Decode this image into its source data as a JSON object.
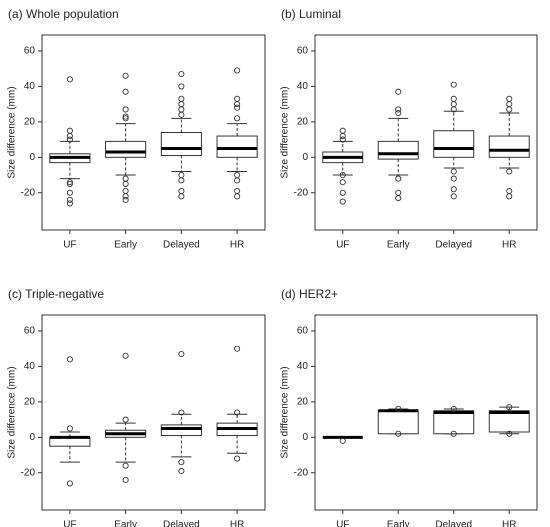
{
  "chart_data": [
    {
      "type": "box",
      "title": "(a) Whole population",
      "y_label": "Size difference (mm)",
      "categories": [
        "UF",
        "Early",
        "Delayed",
        "HR"
      ],
      "boxes": [
        {
          "min": -12,
          "q1": -3,
          "median": 0,
          "q3": 2,
          "max": 9,
          "outliers": [
            44,
            15,
            12,
            10,
            -14,
            -15,
            -20,
            -24,
            -26
          ]
        },
        {
          "min": -10,
          "q1": 0,
          "median": 3,
          "q3": 9,
          "max": 19,
          "outliers": [
            46,
            37,
            27,
            23,
            22,
            -12,
            -15,
            -19,
            -22,
            -24
          ]
        },
        {
          "min": -8,
          "q1": 1,
          "median": 5,
          "q3": 14,
          "max": 22,
          "outliers": [
            47,
            40,
            33,
            30,
            27,
            24,
            -10,
            -13,
            -19,
            -22
          ]
        },
        {
          "min": -8,
          "q1": 0,
          "median": 5,
          "q3": 12,
          "max": 19,
          "outliers": [
            49,
            33,
            30,
            28,
            22,
            -10,
            -13,
            -19,
            -22
          ]
        }
      ],
      "ylim": [
        -41,
        69
      ],
      "yticks": [
        -20,
        0,
        20,
        40,
        60
      ]
    },
    {
      "type": "box",
      "title": "(b) Luminal",
      "y_label": "Size difference (mm)",
      "categories": [
        "UF",
        "Early",
        "Delayed",
        "HR"
      ],
      "boxes": [
        {
          "min": -10,
          "q1": -3,
          "median": 0,
          "q3": 3,
          "max": 9,
          "outliers": [
            15,
            12,
            10,
            -10,
            -14,
            -20,
            -25
          ]
        },
        {
          "min": -10,
          "q1": -1,
          "median": 2,
          "q3": 9,
          "max": 22,
          "outliers": [
            37,
            27,
            25,
            -12,
            -20,
            -23
          ]
        },
        {
          "min": -6,
          "q1": 0,
          "median": 5,
          "q3": 15,
          "max": 26,
          "outliers": [
            41,
            33,
            30,
            27,
            -8,
            -12,
            -18,
            -22
          ]
        },
        {
          "min": -6,
          "q1": 0,
          "median": 4,
          "q3": 12,
          "max": 25,
          "outliers": [
            33,
            30,
            27,
            -8,
            -19,
            -22
          ]
        }
      ],
      "ylim": [
        -41,
        69
      ],
      "yticks": [
        -20,
        0,
        20,
        40,
        60
      ]
    },
    {
      "type": "box",
      "title": "(c) Triple-negative",
      "y_label": "Size difference (mm)",
      "categories": [
        "UF",
        "Early",
        "Delayed",
        "HR"
      ],
      "boxes": [
        {
          "min": -14,
          "q1": -5,
          "median": 0,
          "q3": 0,
          "max": 3,
          "outliers": [
            44,
            5,
            -26
          ]
        },
        {
          "min": -14,
          "q1": 0,
          "median": 2,
          "q3": 4,
          "max": 8,
          "outliers": [
            46,
            10,
            -16,
            -24
          ]
        },
        {
          "min": -11,
          "q1": 1,
          "median": 5,
          "q3": 7,
          "max": 13,
          "outliers": [
            47,
            14,
            -14,
            -19
          ]
        },
        {
          "min": -9,
          "q1": 1,
          "median": 5,
          "q3": 8,
          "max": 13,
          "outliers": [
            50,
            14,
            -12
          ]
        }
      ],
      "ylim": [
        -41,
        69
      ],
      "yticks": [
        -20,
        0,
        20,
        40,
        60
      ]
    },
    {
      "type": "box",
      "title": "(d) HER2+",
      "y_label": "Size difference (mm)",
      "categories": [
        "UF",
        "Early",
        "Delayed",
        "HR"
      ],
      "boxes": [
        {
          "min": 0,
          "q1": 0,
          "median": 0,
          "q3": 0,
          "max": 0,
          "outliers": [
            -2
          ]
        },
        {
          "min": 2,
          "q1": 2,
          "median": 15,
          "q3": 15,
          "max": 16,
          "outliers": [
            16,
            2
          ]
        },
        {
          "min": 2,
          "q1": 2,
          "median": 14,
          "q3": 15,
          "max": 16,
          "outliers": [
            16,
            2
          ]
        },
        {
          "min": 2,
          "q1": 3,
          "median": 14,
          "q3": 15,
          "max": 17,
          "outliers": [
            17,
            2
          ]
        }
      ],
      "ylim": [
        -41,
        69
      ],
      "yticks": [
        -20,
        0,
        20,
        40,
        60
      ]
    }
  ]
}
